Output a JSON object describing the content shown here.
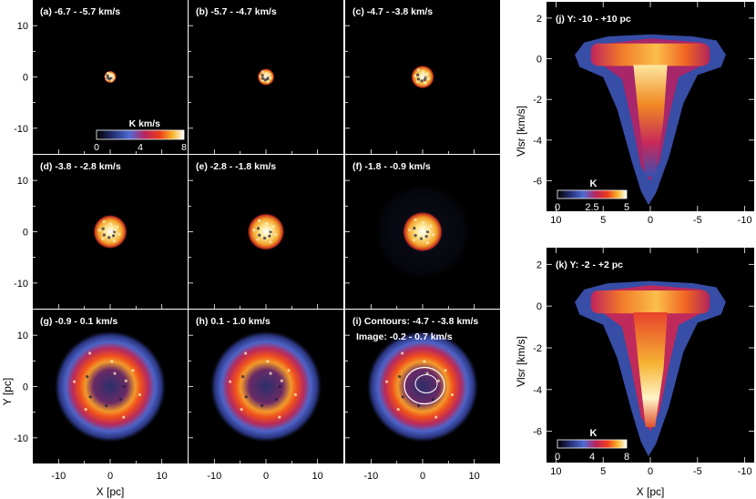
{
  "channel_panels": [
    {
      "label": "(a) -6.7 -   -5.7 km/s",
      "size": 0.08,
      "halo": 0
    },
    {
      "label": "(b) -5.7 -   -4.7 km/s",
      "size": 0.11,
      "halo": 0
    },
    {
      "label": "(c) -4.7 -   -3.8 km/s",
      "size": 0.15,
      "halo": 0
    },
    {
      "label": "(d) -3.8 -   -2.8 km/s",
      "size": 0.22,
      "halo": 0
    },
    {
      "label": "(e) -2.8 -   -1.8 km/s",
      "size": 0.24,
      "halo": 0
    },
    {
      "label": "(f) -1.8 -   -0.9 km/s",
      "size": 0.26,
      "halo": 0.35
    },
    {
      "label": "(g)  -0.9 -    0.1 km/s",
      "size": 0.36,
      "halo": 1
    },
    {
      "label": "(h)  0.1 -    1.0 km/s",
      "size": 0.36,
      "halo": 1
    },
    {
      "label": "(i) Contours: -4.7 - -3.8 km/s",
      "label2": "Image: -0.2 - 0.7 km/s",
      "size": 0.36,
      "halo": 1
    }
  ],
  "channel_colorbar": {
    "title": "K km/s",
    "ticks": [
      "0",
      "4",
      "8"
    ]
  },
  "channel_axes": {
    "xlabel": "X [pc]",
    "ylabel": "Y [pc]",
    "xticks": [
      "-10",
      "0",
      "10"
    ],
    "yticks": [
      "10",
      "0",
      "-10"
    ]
  },
  "pv_panels": [
    {
      "label": "(j) Y: -10 - +10 pc",
      "colorbar_title": "K",
      "colorbar_ticks": [
        "0",
        "2.5",
        "5"
      ]
    },
    {
      "label": "(k) Y: -2 - +2 pc",
      "colorbar_title": "K",
      "colorbar_ticks": [
        "0",
        "4",
        "8"
      ]
    }
  ],
  "pv_axes": {
    "xlabel": "X [pc]",
    "ylabel": "Vlsr [km/s]",
    "xticks": [
      "10",
      "5",
      "0",
      "-5",
      "-10"
    ],
    "yticks": [
      "2",
      "0",
      "-2",
      "-4",
      "-6"
    ]
  },
  "chart_data": {
    "type": "heatmap",
    "title": "",
    "xlabel": "X [pc]",
    "ylabel": "Y [pc]",
    "xlim": [
      -15,
      15
    ],
    "ylim": [
      -15,
      15
    ],
    "pv_xlim": [
      11,
      -11
    ],
    "pv_ylim": [
      -7.5,
      2.8
    ]
  },
  "colors": {
    "panel_bg": "#000000",
    "text": "#ffffff",
    "axis": "#000000"
  }
}
